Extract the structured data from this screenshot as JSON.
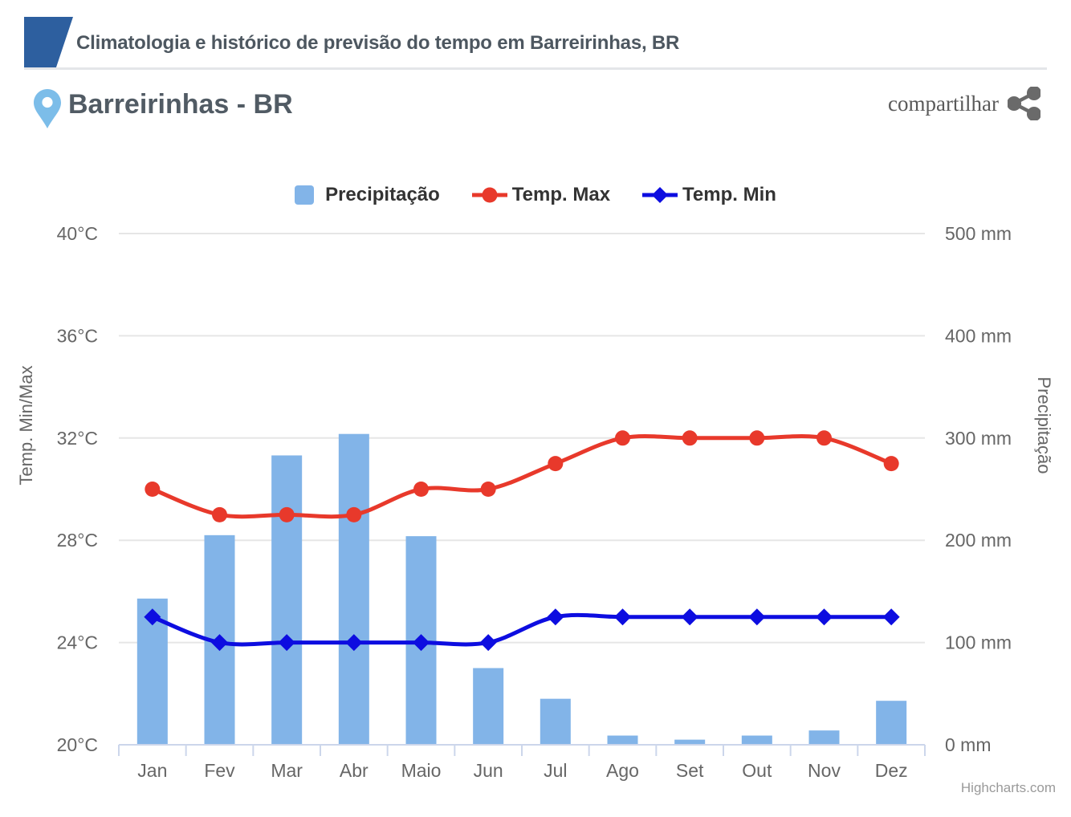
{
  "header": {
    "title": "Climatologia e histórico de previsão do tempo em Barreirinhas, BR"
  },
  "location": {
    "name": "Barreirinhas - BR"
  },
  "share": {
    "label": "compartilhar"
  },
  "credits": {
    "label": "Highcharts.com"
  },
  "colors": {
    "brand": "#2d5f9f",
    "pin": "#7cbde9",
    "bar": "#82b4e8",
    "temp_max": "#e8392b",
    "temp_min": "#0d0de0",
    "grid": "#e6e6e6",
    "axis_line": "#ccd6eb",
    "tick_text": "#666666",
    "legend_text": "#333333"
  },
  "chart_data": {
    "type": "combo",
    "categories": [
      "Jan",
      "Fev",
      "Mar",
      "Abr",
      "Maio",
      "Jun",
      "Jul",
      "Ago",
      "Set",
      "Out",
      "Nov",
      "Dez"
    ],
    "series": [
      {
        "name": "Precipitação",
        "type": "bar",
        "axis": "right",
        "marker": "square",
        "color": "#82b4e8",
        "values": [
          143,
          205,
          283,
          304,
          204,
          75,
          45,
          9,
          5,
          9,
          14,
          43
        ]
      },
      {
        "name": "Temp. Max",
        "type": "line",
        "axis": "left",
        "marker": "circle",
        "color": "#e8392b",
        "values": [
          30,
          29,
          29,
          29,
          30,
          30,
          31,
          32,
          32,
          32,
          32,
          31
        ]
      },
      {
        "name": "Temp. Min",
        "type": "line",
        "axis": "left",
        "marker": "diamond",
        "color": "#0d0de0",
        "values": [
          25,
          24,
          24,
          24,
          24,
          24,
          25,
          25,
          25,
          25,
          25,
          25
        ]
      }
    ],
    "y_left": {
      "title": "Temp. Min/Max",
      "unit": "°C",
      "min": 20,
      "max": 40,
      "ticks": [
        20,
        24,
        28,
        32,
        36,
        40
      ]
    },
    "y_right": {
      "title": "Precipitação",
      "unit": " mm",
      "min": 0,
      "max": 500,
      "ticks": [
        0,
        100,
        200,
        300,
        400,
        500
      ]
    },
    "legend_position": "top",
    "grid": true
  }
}
